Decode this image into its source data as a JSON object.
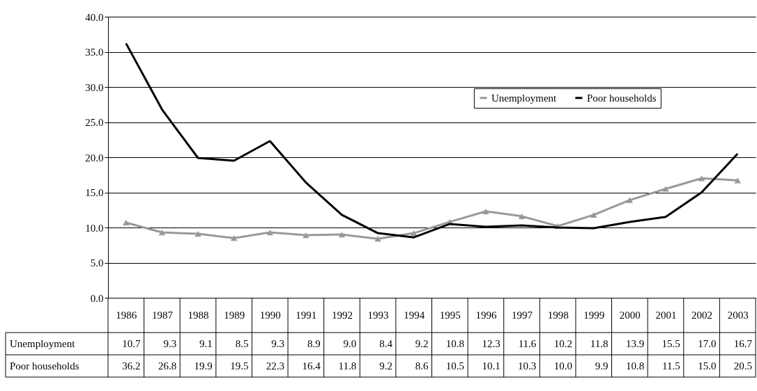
{
  "chart_data": {
    "type": "line",
    "categories": [
      "1986",
      "1987",
      "1988",
      "1989",
      "1990",
      "1991",
      "1992",
      "1993",
      "1994",
      "1995",
      "1996",
      "1997",
      "1998",
      "1999",
      "2000",
      "2001",
      "2002",
      "2003"
    ],
    "series": [
      {
        "name": "Unemployment",
        "color": "#999999",
        "marker": "triangle",
        "values": [
          10.7,
          9.3,
          9.1,
          8.5,
          9.3,
          8.9,
          9.0,
          8.4,
          9.2,
          10.8,
          12.3,
          11.6,
          10.2,
          11.8,
          13.9,
          15.5,
          17.0,
          16.7
        ],
        "value_labels": [
          "10.7",
          "9.3",
          "9.1",
          "8.5",
          "9.3",
          "8.9",
          "9.0",
          "8.4",
          "9.2",
          "10.8",
          "12.3",
          "11.6",
          "10.2",
          "11.8",
          "13.9",
          "15.5",
          "17.0",
          "16.7"
        ]
      },
      {
        "name": "Poor households",
        "color": "#000000",
        "marker": "none",
        "values": [
          36.2,
          26.8,
          19.9,
          19.5,
          22.3,
          16.4,
          11.8,
          9.2,
          8.6,
          10.5,
          10.1,
          10.3,
          10.0,
          9.9,
          10.8,
          11.5,
          15.0,
          20.5
        ],
        "value_labels": [
          "36.2",
          "26.8",
          "19.9",
          "19.5",
          "22.3",
          "16.4",
          "11.8",
          "9.2",
          "8.6",
          "10.5",
          "10.1",
          "10.3",
          "10.0",
          "9.9",
          "10.8",
          "11.5",
          "15.0",
          "20.5"
        ]
      }
    ],
    "ylim": [
      0,
      40
    ],
    "yticks": [
      {
        "value": 0,
        "label": "0.0"
      },
      {
        "value": 5,
        "label": "5.0"
      },
      {
        "value": 10,
        "label": "10.0"
      },
      {
        "value": 15,
        "label": "15.0"
      },
      {
        "value": 20,
        "label": "20.0"
      },
      {
        "value": 25,
        "label": "25.0"
      },
      {
        "value": 30,
        "label": "30.0"
      },
      {
        "value": 35,
        "label": "35.0"
      },
      {
        "value": 40,
        "label": "40.0"
      }
    ],
    "grid": "y",
    "legend": "right"
  }
}
